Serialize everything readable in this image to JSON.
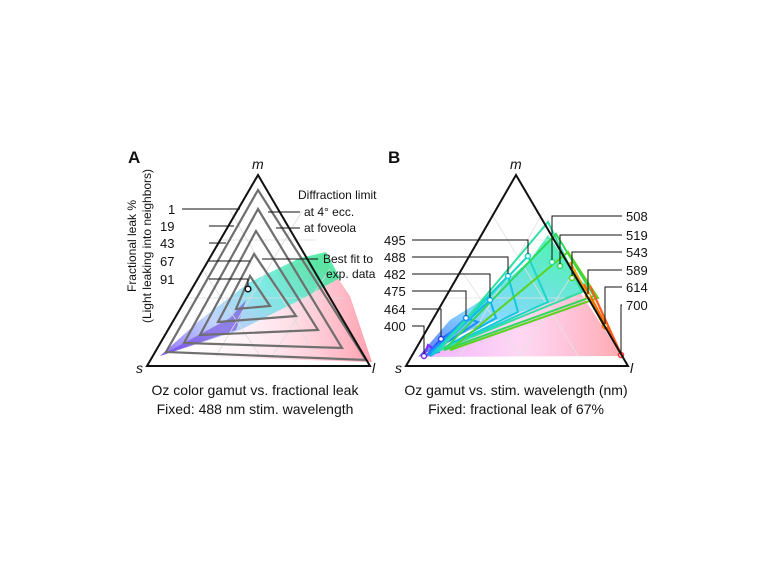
{
  "panel_a": {
    "letter": "A",
    "vertex_m": "m",
    "vertex_s": "s",
    "vertex_l": "l",
    "ylabel_line1": "Fractional leak %",
    "ylabel_line2": "(Light leaking into neighbors)",
    "leak_labels": [
      "1",
      "19",
      "43",
      "67",
      "91"
    ],
    "diffraction_line1": "Diffraction limit",
    "diffraction_line2": "at 4° ecc.",
    "diffraction_line3": "at foveola",
    "bestfit_line1": "Best fit to",
    "bestfit_line2": "exp. data",
    "caption_line1": "Oz color gamut vs. fractional leak",
    "caption_line2": "Fixed: 488 nm stim. wavelength"
  },
  "panel_b": {
    "letter": "B",
    "vertex_m": "m",
    "vertex_s": "s",
    "vertex_l": "l",
    "wavelengths_left": [
      "495",
      "488",
      "482",
      "475",
      "464",
      "400"
    ],
    "wavelengths_right": [
      "508",
      "519",
      "543",
      "589",
      "614",
      "700"
    ],
    "caption_line1": "Oz gamut vs. stim. wavelength (nm)",
    "caption_line2": "Fixed: fractional leak of 67%"
  },
  "colors": {
    "triangle_outline": "#111111",
    "gray_triangles": "#707070",
    "wavelength_colors": {
      "400": "#7a2cff",
      "464": "#2b4cff",
      "475": "#1f8fff",
      "482": "#12b4f0",
      "488": "#14c9dd",
      "495": "#19d8c8",
      "508": "#2fe0a0",
      "519": "#30d85a",
      "543": "#5ad21e",
      "589": "#f0a000",
      "614": "#f07000",
      "700": "#ff2a20"
    }
  }
}
